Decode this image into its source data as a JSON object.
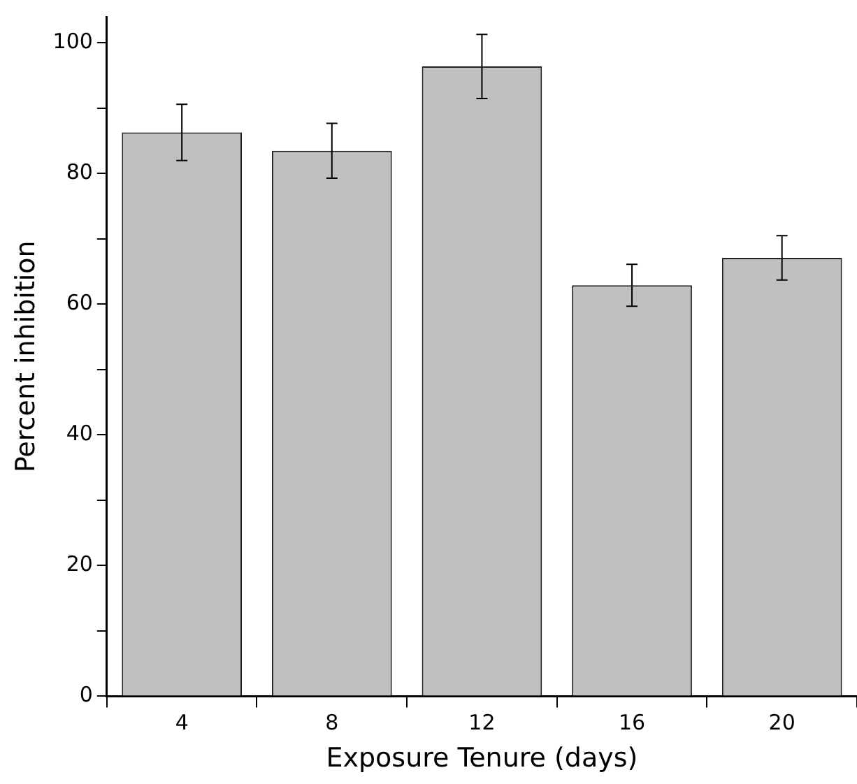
{
  "chart_data": {
    "type": "bar",
    "xlabel": "Exposure Tenure (days)",
    "ylabel": "Percent inhibition",
    "categories": [
      "4",
      "8",
      "12",
      "16",
      "20"
    ],
    "values": [
      86.3,
      83.5,
      96.4,
      62.9,
      67.1
    ],
    "errors": [
      4.3,
      4.2,
      4.9,
      3.2,
      3.4
    ],
    "color": "#c0c0c0",
    "ylim": [
      0,
      104
    ],
    "yticks": [
      0,
      {
        "value": 10,
        "label": null
      },
      20,
      {
        "value": 30,
        "label": null
      },
      40,
      {
        "value": 50,
        "label": null
      },
      60,
      {
        "value": 70,
        "label": null
      },
      80,
      {
        "value": 90,
        "label": null
      },
      100
    ],
    "grid": false,
    "legend": false
  }
}
